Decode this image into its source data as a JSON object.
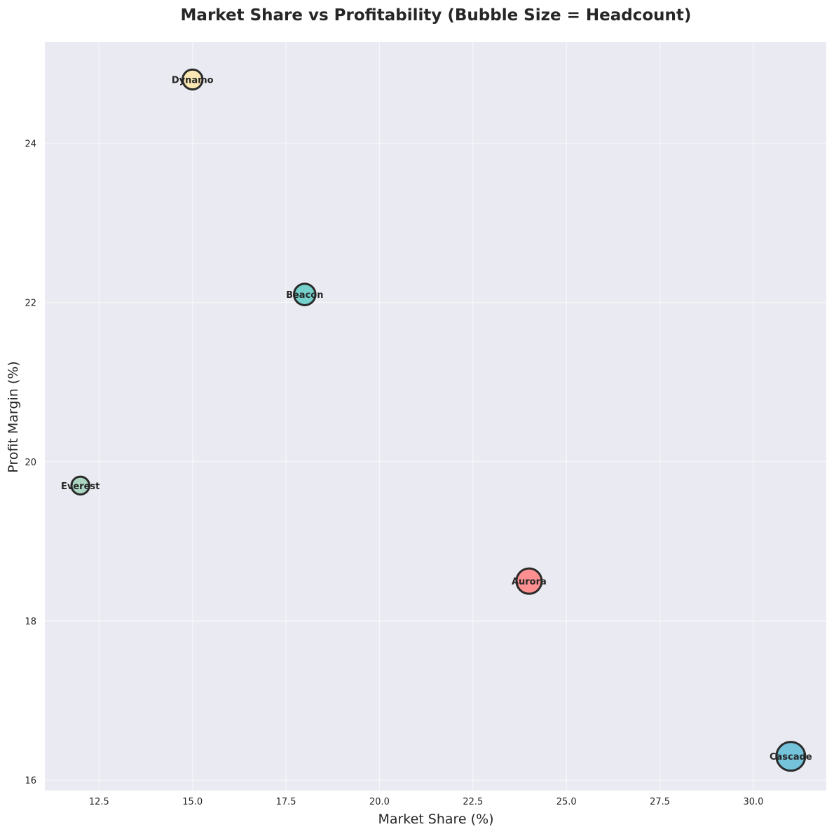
{
  "chart_data": {
    "type": "scatter",
    "title": "Market Share vs Profitability (Bubble Size = Headcount)",
    "xlabel": "Market Share (%)",
    "ylabel": "Profit Margin (%)",
    "xlim": [
      11.05,
      31.95
    ],
    "ylim": [
      15.87,
      25.27
    ],
    "xticks": [
      12.5,
      15.0,
      17.5,
      20.0,
      22.5,
      25.0,
      27.5,
      30.0
    ],
    "xtick_labels": [
      "12.5",
      "15.0",
      "17.5",
      "20.0",
      "22.5",
      "25.0",
      "27.5",
      "30.0"
    ],
    "yticks": [
      16,
      18,
      20,
      22,
      24
    ],
    "ytick_labels": [
      "16",
      "18",
      "20",
      "22",
      "24"
    ],
    "grid": true,
    "background": "#eaeaf2",
    "points": [
      {
        "label": "Aurora",
        "x": 24.0,
        "y": 18.5,
        "size": 1.0,
        "color": "#ff8a8a"
      },
      {
        "label": "Beacon",
        "x": 18.0,
        "y": 22.1,
        "size": 0.72,
        "color": "#6fcfc8"
      },
      {
        "label": "Cascade",
        "x": 31.0,
        "y": 16.3,
        "size": 1.3,
        "color": "#6ec1d9"
      },
      {
        "label": "Dynamo",
        "x": 15.0,
        "y": 24.8,
        "size": 0.62,
        "color": "#fbe7b0"
      },
      {
        "label": "Everest",
        "x": 12.0,
        "y": 19.7,
        "size": 0.5,
        "color": "#a6d5bf"
      }
    ]
  }
}
